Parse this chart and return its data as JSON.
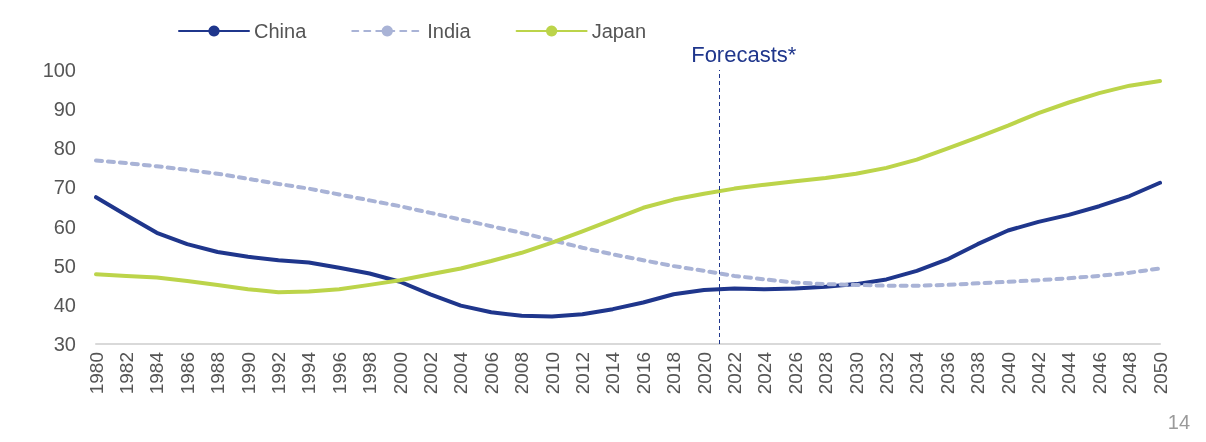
{
  "chart_data": {
    "type": "line",
    "x": [
      1980,
      1982,
      1984,
      1986,
      1988,
      1990,
      1992,
      1994,
      1996,
      1998,
      2000,
      2002,
      2004,
      2006,
      2008,
      2010,
      2012,
      2014,
      2016,
      2018,
      2020,
      2022,
      2024,
      2026,
      2028,
      2030,
      2032,
      2034,
      2036,
      2038,
      2040,
      2042,
      2044,
      2046,
      2048,
      2050
    ],
    "series": [
      {
        "name": "China",
        "color": "#1f368c",
        "line_style": "solid",
        "values": [
          67.5,
          62.9,
          58.4,
          55.5,
          53.5,
          52.3,
          51.4,
          50.8,
          49.5,
          48,
          45.9,
          42.7,
          39.8,
          38.1,
          37.2,
          37,
          37.6,
          38.9,
          40.6,
          42.7,
          43.8,
          44.2,
          44,
          44.2,
          44.6,
          45.3,
          46.5,
          48.7,
          51.6,
          55.5,
          59,
          61.2,
          63,
          65.2,
          67.8,
          71.2
        ]
      },
      {
        "name": "India",
        "color": "#a9b3d6",
        "line_style": "dashed",
        "values": [
          76.9,
          76.2,
          75.4,
          74.5,
          73.5,
          72.2,
          70.9,
          69.7,
          68.2,
          66.7,
          65.2,
          63.5,
          61.8,
          60.1,
          58.4,
          56.5,
          54.6,
          52.9,
          51.4,
          49.9,
          48.7,
          47.4,
          46.5,
          45.7,
          45.3,
          45.1,
          44.9,
          44.9,
          45.1,
          45.5,
          45.9,
          46.3,
          46.8,
          47.4,
          48.2,
          49.3
        ]
      },
      {
        "name": "Japan",
        "color": "#bcd44a",
        "line_style": "solid",
        "values": [
          47.8,
          47.4,
          47,
          46.1,
          45.1,
          44,
          43.2,
          43.4,
          44,
          45.1,
          46.3,
          47.8,
          49.3,
          51.2,
          53.3,
          55.9,
          58.8,
          61.8,
          64.8,
          66.9,
          68.4,
          69.7,
          70.7,
          71.6,
          72.4,
          73.5,
          75,
          77.1,
          79.9,
          82.8,
          85.8,
          89,
          91.7,
          94.1,
          96,
          97.2
        ]
      }
    ],
    "xlim": [
      1980,
      2050
    ],
    "xticks": [
      1980,
      1982,
      1984,
      1986,
      1988,
      1990,
      1992,
      1994,
      1996,
      1998,
      2000,
      2002,
      2004,
      2006,
      2008,
      2010,
      2012,
      2014,
      2016,
      2018,
      2020,
      2022,
      2024,
      2026,
      2028,
      2030,
      2032,
      2034,
      2036,
      2038,
      2040,
      2042,
      2044,
      2046,
      2048,
      2050
    ],
    "ylim": [
      30,
      100
    ],
    "yticks": [
      30,
      40,
      50,
      60,
      70,
      80,
      90,
      100
    ],
    "ref_lines": [
      {
        "axis": "x",
        "value": 2021,
        "label": "Forecasts*",
        "color": "#1f368c",
        "line_style": "dashed"
      }
    ],
    "annotations": [
      "14"
    ],
    "legend": "top",
    "grid": false,
    "marker": "none"
  }
}
